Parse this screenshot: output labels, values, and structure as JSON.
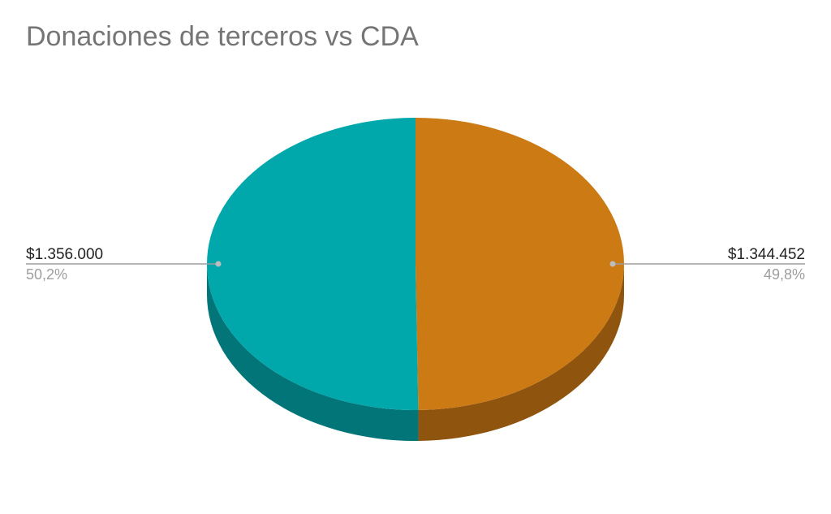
{
  "chart_data": {
    "type": "pie",
    "style": "3d",
    "title": "Donaciones de terceros vs CDA",
    "slices": [
      {
        "value": 1344452,
        "value_label": "$1.344.452",
        "percent_label": "49,8%",
        "color": "#cc7a14",
        "side_color": "#8f550e"
      },
      {
        "value": 1356000,
        "value_label": "$1.356.000",
        "percent_label": "50,2%",
        "color": "#00a8ac",
        "side_color": "#017578"
      }
    ],
    "legend": "none"
  }
}
